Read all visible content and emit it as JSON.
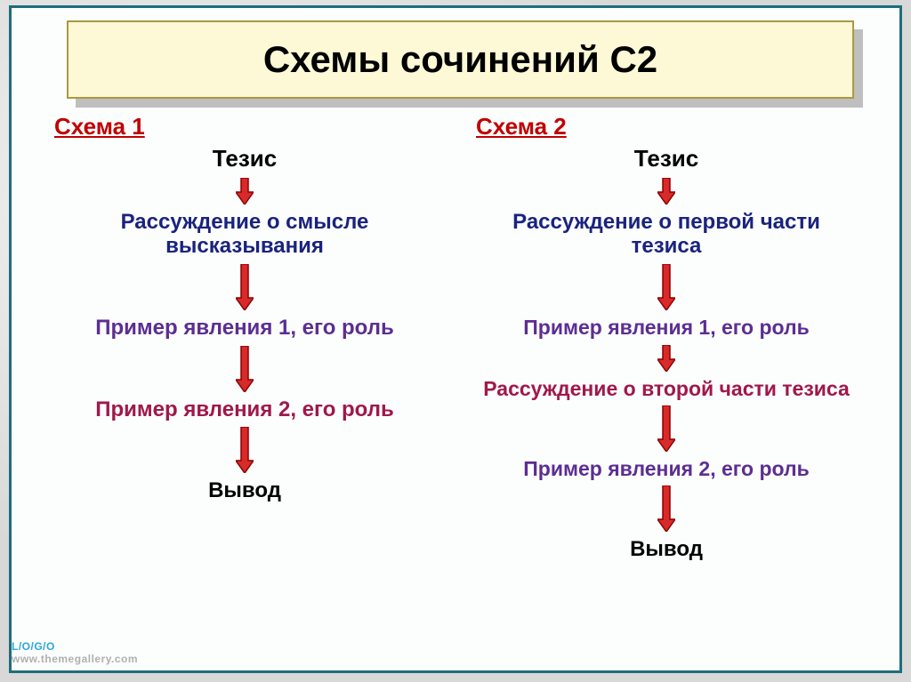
{
  "title": "Схемы сочинений С2",
  "colors": {
    "frame_border": "#1f6d7a",
    "title_bg": "#fdf9d6",
    "title_border": "#a89a40",
    "title_text": "#000000",
    "scheme_title": "#c00000",
    "black": "#000000",
    "navy": "#1a237e",
    "purple": "#5c2e91",
    "darkred": "#a0184a",
    "arrow_fill": "#d82a2a",
    "arrow_stroke": "#8b0000"
  },
  "arrow": {
    "w": 20,
    "h_short": 30,
    "h_long": 52,
    "stroke_w": 1.5
  },
  "scheme1": {
    "title": "Схема 1",
    "nodes": [
      {
        "text": "Тезис",
        "color": "black",
        "size": 26,
        "arrow_after": "short"
      },
      {
        "text": "Рассуждение о смысле высказывания",
        "color": "navy",
        "size": 24,
        "arrow_after": "long"
      },
      {
        "text": "Пример явления 1, его роль",
        "color": "purple",
        "size": 24,
        "arrow_after": "long"
      },
      {
        "text": "Пример явления 2, его роль",
        "color": "darkred",
        "size": 24,
        "arrow_after": "long"
      },
      {
        "text": "Вывод",
        "color": "black",
        "size": 24
      }
    ]
  },
  "scheme2": {
    "title": "Схема 2",
    "nodes": [
      {
        "text": "Тезис",
        "color": "black",
        "size": 26,
        "arrow_after": "short"
      },
      {
        "text": "Рассуждение о первой части тезиса",
        "color": "navy",
        "size": 24,
        "arrow_after": "long"
      },
      {
        "text": "Пример явления 1, его роль",
        "color": "purple",
        "size": 23,
        "arrow_after": "short"
      },
      {
        "text": "Рассуждение о второй части тезиса",
        "color": "darkred",
        "size": 23,
        "arrow_after": "long"
      },
      {
        "text": "Пример явления 2, его роль",
        "color": "purple",
        "size": 23,
        "arrow_after": "long"
      },
      {
        "text": "Вывод",
        "color": "black",
        "size": 24
      }
    ]
  }
}
